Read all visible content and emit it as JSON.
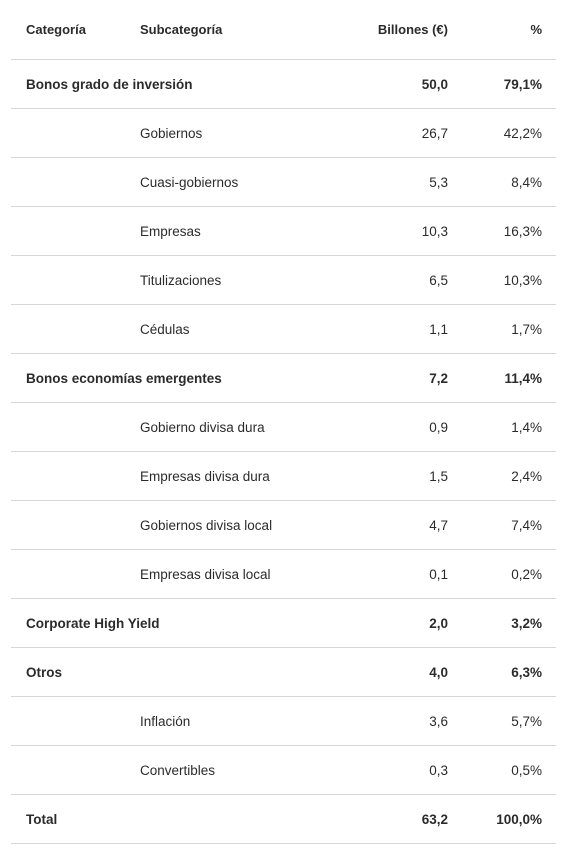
{
  "table": {
    "headers": {
      "categoria": "Categoría",
      "subcategoria": "Subcategoría",
      "billones": "Billones (€)",
      "pct": "%"
    },
    "rows": [
      {
        "categoria": "Bonos grado de inversión",
        "subcategoria": "",
        "billones": "50,0",
        "pct": "79,1%",
        "bold": true
      },
      {
        "categoria": "",
        "subcategoria": "Gobiernos",
        "billones": "26,7",
        "pct": "42,2%",
        "bold": false
      },
      {
        "categoria": "",
        "subcategoria": "Cuasi-gobiernos",
        "billones": "5,3",
        "pct": "8,4%",
        "bold": false
      },
      {
        "categoria": "",
        "subcategoria": "Empresas",
        "billones": "10,3",
        "pct": "16,3%",
        "bold": false
      },
      {
        "categoria": "",
        "subcategoria": "Titulizaciones",
        "billones": "6,5",
        "pct": "10,3%",
        "bold": false
      },
      {
        "categoria": "",
        "subcategoria": "Cédulas",
        "billones": "1,1",
        "pct": "1,7%",
        "bold": false
      },
      {
        "categoria": "Bonos economías emergentes",
        "subcategoria": "",
        "billones": "7,2",
        "pct": "11,4%",
        "bold": true
      },
      {
        "categoria": "",
        "subcategoria": "Gobierno divisa dura",
        "billones": "0,9",
        "pct": "1,4%",
        "bold": false
      },
      {
        "categoria": "",
        "subcategoria": "Empresas divisa dura",
        "billones": "1,5",
        "pct": "2,4%",
        "bold": false
      },
      {
        "categoria": "",
        "subcategoria": "Gobiernos divisa local",
        "billones": "4,7",
        "pct": "7,4%",
        "bold": false
      },
      {
        "categoria": "",
        "subcategoria": "Empresas divisa local",
        "billones": "0,1",
        "pct": "0,2%",
        "bold": false
      },
      {
        "categoria": "Corporate High Yield",
        "subcategoria": "",
        "billones": "2,0",
        "pct": "3,2%",
        "bold": true
      },
      {
        "categoria": "Otros",
        "subcategoria": "",
        "billones": "4,0",
        "pct": "6,3%",
        "bold": true
      },
      {
        "categoria": "",
        "subcategoria": "Inflación",
        "billones": "3,6",
        "pct": "5,7%",
        "bold": false
      },
      {
        "categoria": "",
        "subcategoria": "Convertibles",
        "billones": "0,3",
        "pct": "0,5%",
        "bold": false
      },
      {
        "categoria": "Total",
        "subcategoria": "",
        "billones": "63,2",
        "pct": "100,0%",
        "bold": true
      }
    ]
  }
}
